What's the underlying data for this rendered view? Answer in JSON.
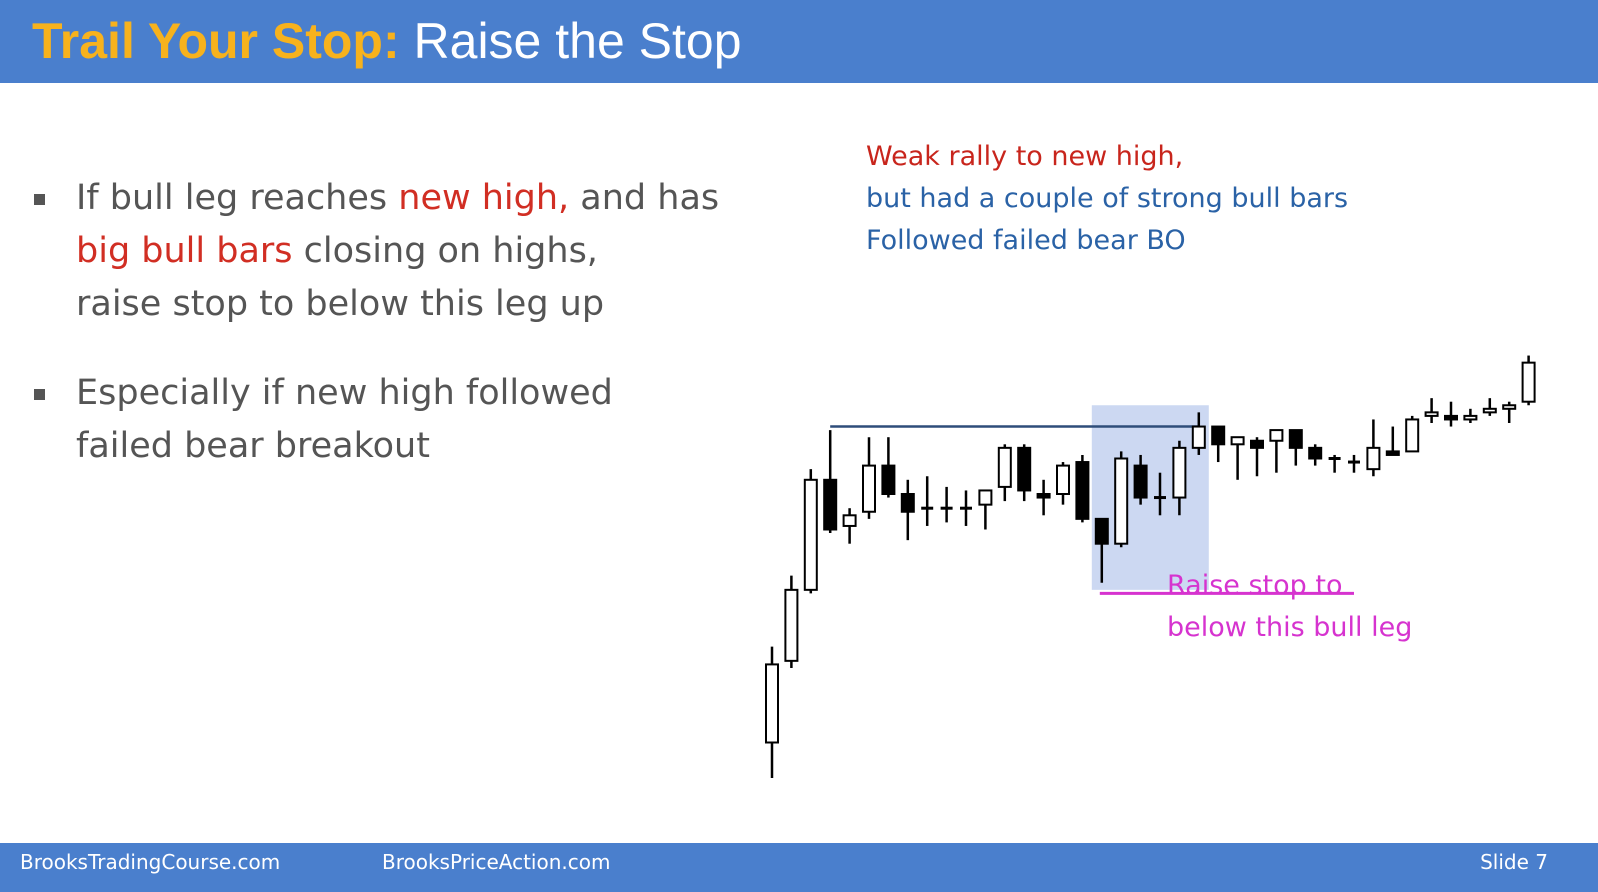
{
  "slide": {
    "title_accent": "Trail Your Stop:",
    "title_rest": " Raise the Stop",
    "colors": {
      "header_bg": "#4a7fcd",
      "accent": "#f7b21d",
      "highlight_red": "#d12e23",
      "annotation_blue": "#2a62a6",
      "annotation_pink": "#d633cf",
      "shade": "#ccd8f2"
    }
  },
  "bullets": [
    {
      "parts": [
        {
          "text": "If bull leg reaches ",
          "hl": false
        },
        {
          "text": "new high,",
          "hl": true
        },
        {
          "text": " and has",
          "hl": false
        },
        {
          "br": true
        },
        {
          "text": "big bull bars",
          "hl": true
        },
        {
          "text": " closing on highs,",
          "hl": false
        },
        {
          "br": true
        },
        {
          "text": "raise stop to below this leg up",
          "hl": false
        }
      ]
    },
    {
      "parts": [
        {
          "text": "Especially if new high followed",
          "hl": false
        },
        {
          "br": true
        },
        {
          "text": "failed bear breakout",
          "hl": false
        }
      ]
    }
  ],
  "annotations": {
    "top_line1": "Weak rally to new high,",
    "top_line2": "but had a couple of strong bull bars",
    "top_line3": "Followed failed bear BO",
    "pink_line1": "Raise stop to",
    "pink_line2": "below this bull leg"
  },
  "chart_data": {
    "type": "candlestick",
    "title": "",
    "xlabel": "",
    "ylabel": "",
    "ylim": [
      0,
      100
    ],
    "bars": [
      {
        "i": 0,
        "o": 10,
        "h": 37,
        "l": 0,
        "c": 32,
        "bull": true
      },
      {
        "i": 1,
        "o": 33,
        "h": 57,
        "l": 31,
        "c": 53,
        "bull": true
      },
      {
        "i": 2,
        "o": 53,
        "h": 87,
        "l": 52,
        "c": 84,
        "bull": true
      },
      {
        "i": 3,
        "o": 84,
        "h": 98,
        "l": 69,
        "c": 70,
        "bull": false
      },
      {
        "i": 4,
        "o": 71,
        "h": 76,
        "l": 66,
        "c": 74,
        "bull": true
      },
      {
        "i": 5,
        "o": 75,
        "h": 96,
        "l": 73,
        "c": 88,
        "bull": true
      },
      {
        "i": 6,
        "o": 88,
        "h": 96,
        "l": 79,
        "c": 80,
        "bull": false
      },
      {
        "i": 7,
        "o": 80,
        "h": 84,
        "l": 67,
        "c": 75,
        "bull": false
      },
      {
        "i": 8,
        "o": 76,
        "h": 85,
        "l": 71,
        "c": 76,
        "bull": false
      },
      {
        "i": 9,
        "o": 76,
        "h": 82,
        "l": 72,
        "c": 76,
        "bull": true
      },
      {
        "i": 10,
        "o": 76,
        "h": 81,
        "l": 71,
        "c": 76,
        "bull": true
      },
      {
        "i": 11,
        "o": 77,
        "h": 81,
        "l": 70,
        "c": 81,
        "bull": true
      },
      {
        "i": 12,
        "o": 82,
        "h": 94,
        "l": 78,
        "c": 93,
        "bull": true
      },
      {
        "i": 13,
        "o": 93,
        "h": 94,
        "l": 78,
        "c": 81,
        "bull": false
      },
      {
        "i": 14,
        "o": 80,
        "h": 84,
        "l": 74,
        "c": 79,
        "bull": false
      },
      {
        "i": 15,
        "o": 80,
        "h": 89,
        "l": 77,
        "c": 88,
        "bull": true
      },
      {
        "i": 16,
        "o": 89,
        "h": 91,
        "l": 72,
        "c": 73,
        "bull": false
      },
      {
        "i": 17,
        "o": 73,
        "h": 73,
        "l": 55,
        "c": 66,
        "bull": false
      },
      {
        "i": 18,
        "o": 66,
        "h": 92,
        "l": 65,
        "c": 90,
        "bull": true
      },
      {
        "i": 19,
        "o": 88,
        "h": 91,
        "l": 77,
        "c": 79,
        "bull": false
      },
      {
        "i": 20,
        "o": 79,
        "h": 86,
        "l": 74,
        "c": 79,
        "bull": false
      },
      {
        "i": 21,
        "o": 79,
        "h": 95,
        "l": 74,
        "c": 93,
        "bull": true
      },
      {
        "i": 22,
        "o": 93,
        "h": 103,
        "l": 91,
        "c": 99,
        "bull": true
      },
      {
        "i": 23,
        "o": 99,
        "h": 99,
        "l": 89,
        "c": 94,
        "bull": false
      },
      {
        "i": 24,
        "o": 94,
        "h": 96,
        "l": 84,
        "c": 96,
        "bull": true
      },
      {
        "i": 25,
        "o": 95,
        "h": 96,
        "l": 85,
        "c": 93,
        "bull": false
      },
      {
        "i": 26,
        "o": 98,
        "h": 98,
        "l": 86,
        "c": 95,
        "bull": true
      },
      {
        "i": 27,
        "o": 98,
        "h": 98,
        "l": 88,
        "c": 93,
        "bull": false
      },
      {
        "i": 28,
        "o": 93,
        "h": 94,
        "l": 88,
        "c": 90,
        "bull": false
      },
      {
        "i": 29,
        "o": 90,
        "h": 91,
        "l": 86,
        "c": 90,
        "bull": false
      },
      {
        "i": 30,
        "o": 89,
        "h": 91,
        "l": 86,
        "c": 89,
        "bull": false
      },
      {
        "i": 31,
        "o": 87,
        "h": 101,
        "l": 85,
        "c": 93,
        "bull": true
      },
      {
        "i": 32,
        "o": 92,
        "h": 99,
        "l": 91,
        "c": 91,
        "bull": false
      },
      {
        "i": 33,
        "o": 92,
        "h": 102,
        "l": 92,
        "c": 101,
        "bull": true
      },
      {
        "i": 34,
        "o": 102,
        "h": 107,
        "l": 100,
        "c": 103,
        "bull": true
      },
      {
        "i": 35,
        "o": 102,
        "h": 106,
        "l": 99,
        "c": 101,
        "bull": false
      },
      {
        "i": 36,
        "o": 101,
        "h": 104,
        "l": 100,
        "c": 102,
        "bull": true
      },
      {
        "i": 37,
        "o": 103,
        "h": 107,
        "l": 102,
        "c": 104,
        "bull": true
      },
      {
        "i": 38,
        "o": 104,
        "h": 106,
        "l": 100,
        "c": 105,
        "bull": true
      },
      {
        "i": 39,
        "o": 106,
        "h": 119,
        "l": 105,
        "c": 117,
        "bull": true
      }
    ],
    "prior_high_line": 99,
    "stop_line": 52,
    "highlight_range_bars": [
      17,
      22
    ]
  },
  "footer": {
    "site1": "BrooksTradingCourse.com",
    "site2": "BrooksPriceAction.com",
    "slide": "Slide  7"
  }
}
